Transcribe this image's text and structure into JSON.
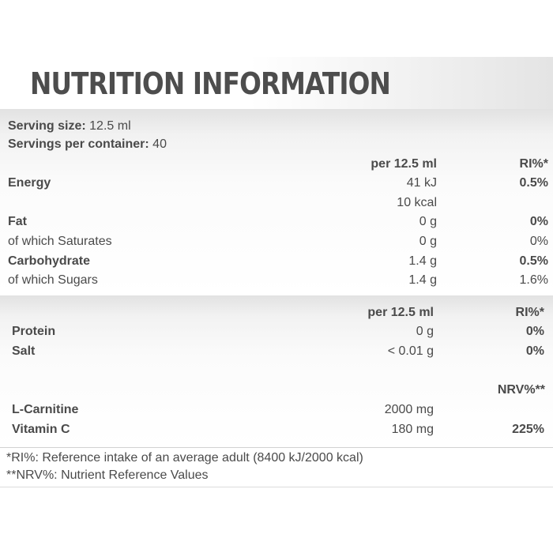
{
  "title": "NUTRITION INFORMATION",
  "serving": {
    "size_label": "Serving size:",
    "size_value": "12.5 ml",
    "count_label": "Servings per container:",
    "count_value": "40"
  },
  "table1": {
    "header_per": "per 12.5 ml",
    "header_ri": "RI%*",
    "rows": [
      {
        "label": "Energy",
        "per": "41 kJ",
        "ri": "0.5%",
        "bold": true
      },
      {
        "label": "",
        "per": "10 kcal",
        "ri": "",
        "bold": false
      },
      {
        "label": "Fat",
        "per": "0 g",
        "ri": "0%",
        "bold": true
      },
      {
        "label": "of which Saturates",
        "per": "0 g",
        "ri": "0%",
        "bold": false
      },
      {
        "label": "Carbohydrate",
        "per": "1.4 g",
        "ri": "0.5%",
        "bold": true
      },
      {
        "label": "of which Sugars",
        "per": "1.4 g",
        "ri": "1.6%",
        "bold": false
      }
    ]
  },
  "table2": {
    "header_per": "per 12.5 ml",
    "header_ri": "RI%*",
    "rows": [
      {
        "label": "Protein",
        "per": "0 g",
        "ri": "0%"
      },
      {
        "label": "Salt",
        "per": "< 0.01 g",
        "ri": "0%"
      }
    ]
  },
  "table3": {
    "header_nrv": "NRV%**",
    "rows": [
      {
        "label": "L-Carnitine",
        "per": "2000 mg",
        "nrv": ""
      },
      {
        "label": "Vitamin C",
        "per": "180 mg",
        "nrv": "225%"
      }
    ]
  },
  "footnotes": {
    "ri": "*RI%: Reference intake of an average adult (8400 kJ/2000 kcal)",
    "nrv": "**NRV%: Nutrient Reference Values"
  }
}
